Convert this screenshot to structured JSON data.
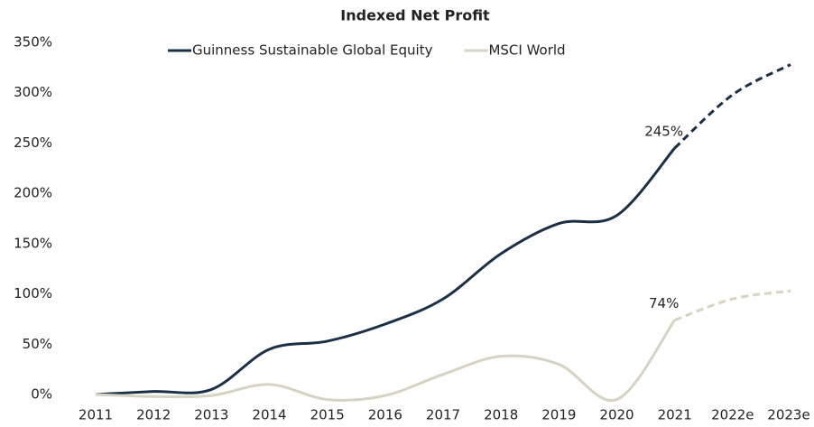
{
  "chart_data": {
    "type": "line",
    "title": "Indexed Net Profit",
    "categories": [
      "2011",
      "2012",
      "2013",
      "2014",
      "2015",
      "2016",
      "2017",
      "2018",
      "2019",
      "2020",
      "2021",
      "2022e",
      "2023e"
    ],
    "series": [
      {
        "name": "Guinness Sustainable Global Equity",
        "color": "#1b2f45",
        "values": [
          0,
          3,
          5,
          45,
          53,
          70,
          95,
          140,
          170,
          178,
          245,
          298,
          328
        ],
        "value_labels": [
          null,
          null,
          null,
          null,
          null,
          null,
          null,
          null,
          null,
          null,
          "245%",
          null,
          null
        ]
      },
      {
        "name": "MSCI World",
        "color": "#d6d3c3",
        "values": [
          0,
          -2,
          -1,
          10,
          -5,
          -1,
          20,
          38,
          30,
          -5,
          74,
          95,
          103
        ],
        "value_labels": [
          null,
          null,
          null,
          null,
          null,
          null,
          null,
          null,
          null,
          null,
          "74%",
          null,
          null
        ]
      }
    ],
    "ylim": [
      0,
      350
    ],
    "yticks": [
      {
        "value": 0,
        "label": "0%"
      },
      {
        "value": 50,
        "label": "50%"
      },
      {
        "value": 100,
        "label": "100%"
      },
      {
        "value": 150,
        "label": "150%"
      },
      {
        "value": 200,
        "label": "200%"
      },
      {
        "value": 250,
        "label": "250%"
      },
      {
        "value": 300,
        "label": "300%"
      },
      {
        "value": 350,
        "label": "350%"
      }
    ],
    "grid": false,
    "legend": "top"
  }
}
